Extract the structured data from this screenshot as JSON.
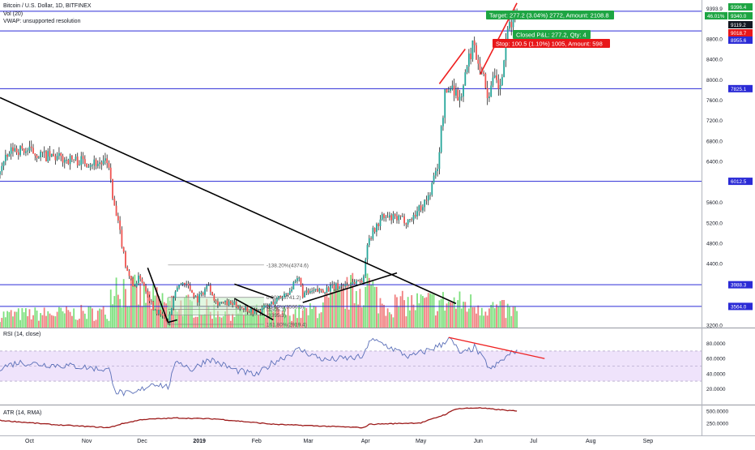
{
  "header": {
    "symbol_line": "Bitcoin / U.S. Dollar, 1D, BITFINEX",
    "vol_line": "Vol (20)",
    "vwap_line": "VWAP: unsupported resolution"
  },
  "rsi_title": "RSI (14, close)",
  "atr_title": "ATR (14, RMA)",
  "colors": {
    "up": "#26a69a",
    "down": "#ef5350",
    "up_wick": "#000000",
    "vol_up": "#7ee07e",
    "vol_down": "#f08080",
    "level_line": "#2b2bd6",
    "trend_line": "#000000",
    "red_trend": "#ef2020",
    "rsi_line": "#5a6fb8",
    "rsi_band": "#efe3fb",
    "atr_line": "#9c1a1a",
    "target_badge": "#1ea543",
    "stop_badge": "#e8171a"
  },
  "price_axis": {
    "ticks": [
      "9393.9",
      "8800.0",
      "8400.0",
      "8000.0",
      "7600.0",
      "7200.0",
      "6800.0",
      "6400.0",
      "5600.0",
      "5200.0",
      "4800.0",
      "4400.0",
      "3200.0"
    ],
    "tick_values": [
      9393.9,
      8800,
      8400,
      8000,
      7600,
      7200,
      6800,
      6400,
      5600,
      5200,
      4800,
      4400,
      3200
    ],
    "labels": [
      {
        "text": "9396.4",
        "value": 9396.4,
        "color": "#1ea543"
      },
      {
        "text": "46.01%",
        "value": 9340,
        "color": "#1ea543"
      },
      {
        "text": "9340.0",
        "value": 9340,
        "color": "#1ea543"
      },
      {
        "text": "9119.2",
        "value": 9119.2,
        "color": "#131722"
      },
      {
        "text": "9018.7",
        "value": 9018.7,
        "color": "#e8171a"
      },
      {
        "text": "8955.6",
        "value": 8955.6,
        "color": "#2b2bd6"
      },
      {
        "text": "7825.1",
        "value": 7825.1,
        "color": "#2b2bd6"
      },
      {
        "text": "6012.5",
        "value": 6012.5,
        "color": "#2b2bd6"
      },
      {
        "text": "3988.3",
        "value": 3988.3,
        "color": "#2b2bd6"
      },
      {
        "text": "3564.0",
        "value": 3564.0,
        "color": "#2b2bd6"
      }
    ]
  },
  "horizontal_levels": [
    9340.0,
    8955.6,
    7825.1,
    6012.5,
    3988.3,
    3564.0
  ],
  "rsi_axis": {
    "ticks": [
      "80.0000",
      "60.0000",
      "40.0000",
      "20.0000"
    ],
    "tick_values": [
      80,
      60,
      40,
      20
    ],
    "band": [
      30,
      70
    ]
  },
  "atr_axis": {
    "ticks": [
      "500.0000",
      "250.0000"
    ],
    "tick_values": [
      500,
      250
    ]
  },
  "time_axis": {
    "labels": [
      "Oct",
      "Nov",
      "Dec",
      "2019",
      "Feb",
      "Mar",
      "Apr",
      "May",
      "Jun",
      "Jul",
      "Aug",
      "Sep"
    ],
    "label_bold": "2019"
  },
  "position_badges": {
    "target": "Target: 277.2 (3.04%) 2772, Amount: 2108.8",
    "closed": "Closed P&L: 277.2, Qty: 4",
    "stop": "Stop: 100.5 (1.10%) 1005, Amount: 598"
  },
  "fib_labels": {
    "top": "-138.20%(4374.6)",
    "zero": "0.00%(3741.2)",
    "level_a": "23.60%(3566.3)",
    "level_b": "(3505.1)",
    "level_c": "(3395.3)",
    "bottom": "161.80%(2919.4)"
  },
  "chart_data": {
    "type": "candlestick",
    "title": "Bitcoin / U.S. Dollar, 1D, BITFINEX",
    "xlabel": "",
    "ylabel": "",
    "x_range": [
      "2018-09-15",
      "2019-09-30"
    ],
    "ylim": [
      3150,
      9560
    ],
    "price_anchors": [
      [
        "2018-09-15",
        6250
      ],
      [
        "2018-09-22",
        6650
      ],
      [
        "2018-10-01",
        6600
      ],
      [
        "2018-10-10",
        6500
      ],
      [
        "2018-10-20",
        6450
      ],
      [
        "2018-11-01",
        6400
      ],
      [
        "2018-11-13",
        6350
      ],
      [
        "2018-11-15",
        5650
      ],
      [
        "2018-11-19",
        5000
      ],
      [
        "2018-11-22",
        4400
      ],
      [
        "2018-11-26",
        3950
      ],
      [
        "2018-11-30",
        4150
      ],
      [
        "2018-12-07",
        3550
      ],
      [
        "2018-12-15",
        3250
      ],
      [
        "2018-12-20",
        3950
      ],
      [
        "2018-12-24",
        4050
      ],
      [
        "2018-12-31",
        3700
      ],
      [
        "2019-01-06",
        4000
      ],
      [
        "2019-01-10",
        3650
      ],
      [
        "2019-01-20",
        3600
      ],
      [
        "2019-02-01",
        3450
      ],
      [
        "2019-02-08",
        3600
      ],
      [
        "2019-02-18",
        3850
      ],
      [
        "2019-02-24",
        4100
      ],
      [
        "2019-02-26",
        3800
      ],
      [
        "2019-03-10",
        3900
      ],
      [
        "2019-03-20",
        3980
      ],
      [
        "2019-03-31",
        4100
      ],
      [
        "2019-04-02",
        4850
      ],
      [
        "2019-04-10",
        5300
      ],
      [
        "2019-04-25",
        5250
      ],
      [
        "2019-05-05",
        5700
      ],
      [
        "2019-05-10",
        6300
      ],
      [
        "2019-05-14",
        7700
      ],
      [
        "2019-05-18",
        7900
      ],
      [
        "2019-05-22",
        7600
      ],
      [
        "2019-05-29",
        8700
      ],
      [
        "2019-06-03",
        8200
      ],
      [
        "2019-06-06",
        7700
      ],
      [
        "2019-06-10",
        8000
      ],
      [
        "2019-06-13",
        7800
      ],
      [
        "2019-06-15",
        8400
      ],
      [
        "2019-06-18",
        9100
      ],
      [
        "2019-06-22",
        9300
      ]
    ],
    "volume_anchors": [
      [
        "2018-09-15",
        0.25
      ],
      [
        "2018-11-13",
        0.3
      ],
      [
        "2018-11-15",
        1.0
      ],
      [
        "2018-11-20",
        0.8
      ],
      [
        "2018-12-01",
        0.6
      ],
      [
        "2018-12-15",
        0.5
      ],
      [
        "2019-01-15",
        0.3
      ],
      [
        "2019-03-01",
        0.3
      ],
      [
        "2019-04-02",
        0.85
      ],
      [
        "2019-04-10",
        0.45
      ],
      [
        "2019-05-14",
        0.5
      ],
      [
        "2019-06-01",
        0.45
      ],
      [
        "2019-06-22",
        0.3
      ]
    ],
    "rsi_range": [
      0,
      100
    ],
    "rsi_anchors": [
      [
        "2018-09-15",
        48
      ],
      [
        "2018-09-25",
        55
      ],
      [
        "2018-10-10",
        52
      ],
      [
        "2018-10-25",
        50
      ],
      [
        "2018-11-13",
        45
      ],
      [
        "2018-11-17",
        16
      ],
      [
        "2018-11-26",
        12
      ],
      [
        "2018-12-07",
        28
      ],
      [
        "2018-12-15",
        22
      ],
      [
        "2018-12-20",
        58
      ],
      [
        "2018-12-28",
        45
      ],
      [
        "2019-01-06",
        60
      ],
      [
        "2019-01-20",
        45
      ],
      [
        "2019-02-01",
        38
      ],
      [
        "2019-02-10",
        55
      ],
      [
        "2019-02-24",
        72
      ],
      [
        "2019-03-10",
        58
      ],
      [
        "2019-03-31",
        62
      ],
      [
        "2019-04-03",
        85
      ],
      [
        "2019-04-10",
        80
      ],
      [
        "2019-04-25",
        62
      ],
      [
        "2019-05-12",
        78
      ],
      [
        "2019-05-16",
        88
      ],
      [
        "2019-05-23",
        65
      ],
      [
        "2019-05-30",
        75
      ],
      [
        "2019-06-08",
        45
      ],
      [
        "2019-06-14",
        58
      ],
      [
        "2019-06-22",
        72
      ]
    ],
    "rsi_trendline": [
      [
        "2019-05-16",
        88
      ],
      [
        "2019-07-07",
        60
      ]
    ],
    "atr_range": [
      0,
      620
    ],
    "atr_anchors": [
      [
        "2018-09-15",
        310
      ],
      [
        "2018-10-15",
        220
      ],
      [
        "2018-11-13",
        160
      ],
      [
        "2018-11-20",
        240
      ],
      [
        "2018-12-01",
        330
      ],
      [
        "2018-12-20",
        360
      ],
      [
        "2019-01-10",
        340
      ],
      [
        "2019-02-10",
        230
      ],
      [
        "2019-03-31",
        160
      ],
      [
        "2019-04-03",
        230
      ],
      [
        "2019-05-01",
        260
      ],
      [
        "2019-05-14",
        430
      ],
      [
        "2019-05-20",
        550
      ],
      [
        "2019-06-01",
        570
      ],
      [
        "2019-06-10",
        540
      ],
      [
        "2019-06-22",
        500
      ]
    ],
    "trendlines": [
      {
        "points": [
          [
            "2018-09-15",
            7650
          ],
          [
            "2019-05-20",
            3620
          ]
        ],
        "color": "black"
      },
      {
        "points": [
          [
            "2019-02-26",
            3640
          ],
          [
            "2019-04-18",
            4220
          ]
        ],
        "color": "black"
      },
      {
        "points": [
          [
            "2018-12-04",
            4320
          ],
          [
            "2018-12-15",
            3250
          ],
          [
            "2018-12-20",
            3300
          ]
        ],
        "color": "black"
      },
      {
        "points": [
          [
            "2019-01-20",
            4000
          ],
          [
            "2019-02-10",
            3730
          ]
        ],
        "color": "black"
      },
      {
        "points": [
          [
            "2019-01-20",
            3720
          ],
          [
            "2019-02-10",
            3300
          ]
        ],
        "color": "black"
      },
      {
        "points": [
          [
            "2019-05-11",
            7920
          ],
          [
            "2019-05-25",
            8600
          ]
        ],
        "color": "red"
      },
      {
        "points": [
          [
            "2019-06-02",
            8100
          ],
          [
            "2019-06-22",
            9500
          ]
        ],
        "color": "red"
      }
    ]
  }
}
